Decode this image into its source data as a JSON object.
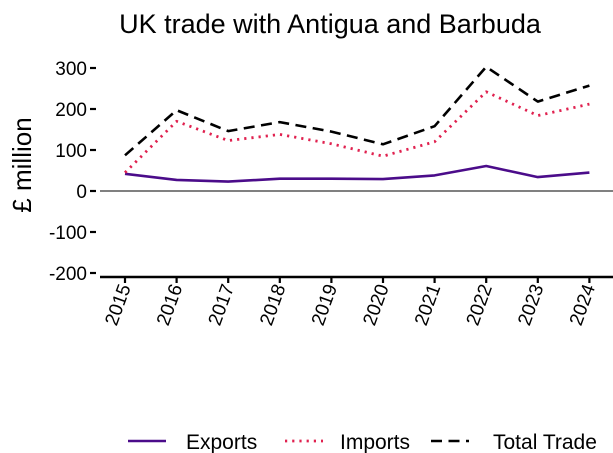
{
  "chart_data": {
    "type": "line",
    "title": "UK trade with Antigua and Barbuda",
    "xlabel": "",
    "ylabel": "£ million",
    "x": [
      "2015",
      "2016",
      "2017",
      "2018",
      "2019",
      "2020",
      "2021",
      "2022",
      "2023",
      "2024"
    ],
    "ylim": [
      -200,
      300
    ],
    "yticks": [
      300,
      200,
      100,
      0,
      -100,
      -200
    ],
    "ytick_labels": [
      "300",
      "200",
      "100",
      "0",
      "-100",
      "-200"
    ],
    "grid": false,
    "zero_line": true,
    "legend_position": "bottom",
    "series": [
      {
        "name": "Exports",
        "color": "#4b0c8a",
        "line_style": "solid",
        "values": [
          42,
          27,
          23,
          30,
          30,
          29,
          38,
          61,
          34,
          45
        ]
      },
      {
        "name": "Imports",
        "color": "#e0214f",
        "line_style": "dotted",
        "values": [
          45,
          170,
          123,
          138,
          115,
          85,
          120,
          242,
          184,
          212
        ]
      },
      {
        "name": "Total Trade",
        "color": "#000000",
        "line_style": "dashed",
        "values": [
          87,
          197,
          146,
          168,
          145,
          114,
          158,
          303,
          218,
          257
        ]
      }
    ]
  }
}
